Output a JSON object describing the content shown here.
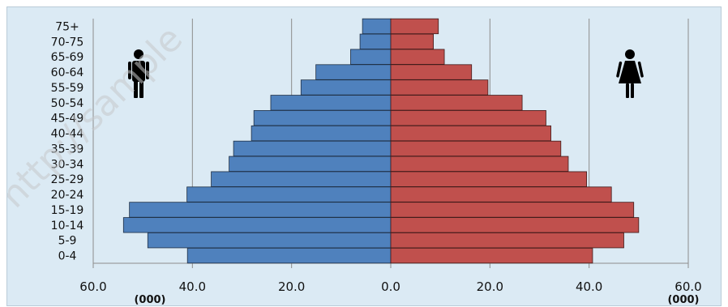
{
  "watermark": "http://sample",
  "colors": {
    "background": "#dbeaf4",
    "male": "#4f81bd",
    "female": "#c0504d",
    "grid": "#8c8c8c",
    "icon": "#000000"
  },
  "icons": {
    "male": "male-figure-icon",
    "female": "female-figure-icon"
  },
  "chart_data": {
    "type": "bar",
    "orientation": "horizontal-population-pyramid",
    "title": "",
    "xlabel": "",
    "ylabel": "",
    "xlim": [
      -60,
      60
    ],
    "x_ticks": [
      -60,
      -40,
      -20,
      0,
      20,
      40,
      60
    ],
    "tick_labels": [
      "60.0",
      "40.0",
      "20.0",
      "0.0",
      "20.0",
      "40.0",
      "60.0"
    ],
    "unit_left": "(000)",
    "unit_right": "(000)",
    "grid": "vertical",
    "categories": [
      "0-4",
      "5-9",
      "10-14",
      "15-19",
      "20-24",
      "25-29",
      "30-34",
      "35-39",
      "40-44",
      "45-49",
      "50-54",
      "55-59",
      "60-64",
      "65-69",
      "70-75",
      "75+"
    ],
    "series": [
      {
        "side": "left",
        "values": [
          41.0,
          49.0,
          53.9,
          52.7,
          41.1,
          36.2,
          32.6,
          31.7,
          28.1,
          27.6,
          24.2,
          18.1,
          15.1,
          8.1,
          6.2,
          5.7
        ]
      },
      {
        "side": "right",
        "values": [
          40.7,
          47.0,
          50.0,
          49.0,
          44.5,
          39.5,
          35.8,
          34.3,
          32.3,
          31.3,
          26.5,
          19.6,
          16.3,
          10.8,
          8.6,
          9.6
        ]
      }
    ]
  }
}
